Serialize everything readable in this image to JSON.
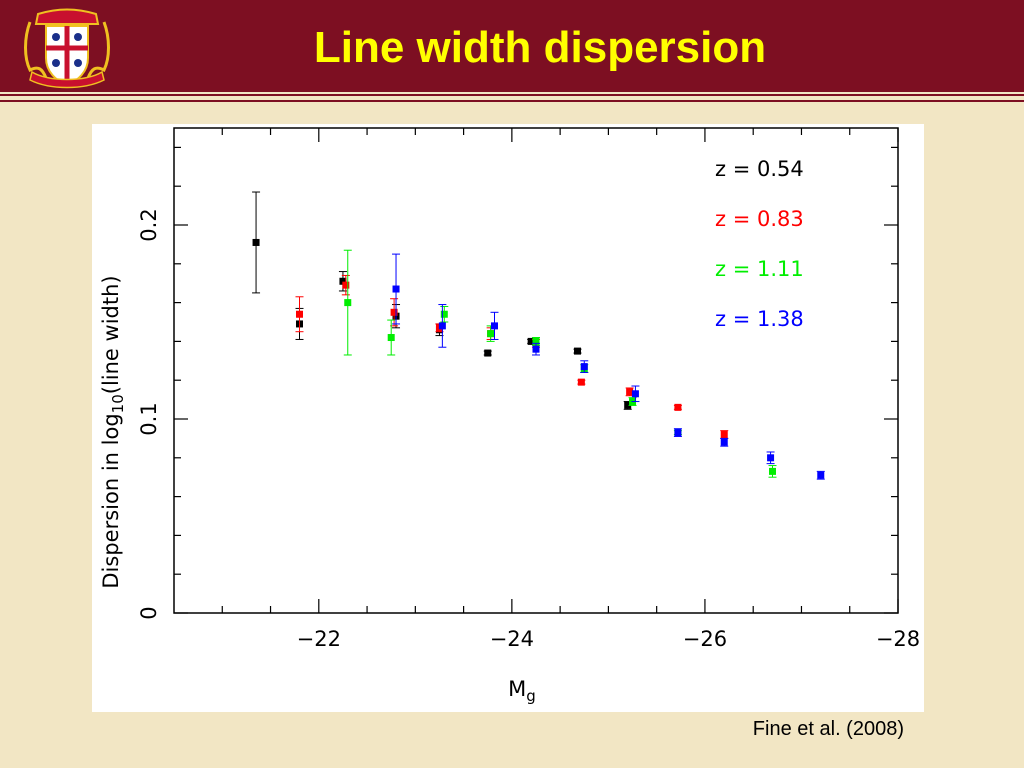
{
  "slide": {
    "title": "Line width dispersion",
    "credit": "Fine et al. (2008)",
    "colors": {
      "header": "#7d0f22",
      "background": "#f2e6c4",
      "title": "#ffff00"
    },
    "logo": "university-crest-icon"
  },
  "chart_data": {
    "type": "scatter",
    "title": "",
    "xlabel": "M_g",
    "xlabel_main": "M",
    "xlabel_sub": "g",
    "ylabel": "Dispersion in log10(line width)",
    "ylabel_parts": {
      "pre": "Dispersion in log",
      "sub": "10",
      "post": "(line width)"
    },
    "xlim": [
      -20.5,
      -28
    ],
    "ylim": [
      0,
      0.25
    ],
    "xticks": [
      -22,
      -24,
      -26,
      -28
    ],
    "xtick_labels": [
      "−22",
      "−24",
      "−26",
      "−28"
    ],
    "yticks": [
      0,
      0.1,
      0.2
    ],
    "ytick_labels": [
      "0",
      "0.1",
      "0.2"
    ],
    "grid": false,
    "legend_position": "top-right",
    "series": [
      {
        "name": "z = 0.54",
        "color": "#000000",
        "points": [
          {
            "x": -21.35,
            "y": 0.191,
            "err": 0.026
          },
          {
            "x": -21.8,
            "y": 0.149,
            "err": 0.008
          },
          {
            "x": -22.25,
            "y": 0.171,
            "err": 0.005
          },
          {
            "x": -22.8,
            "y": 0.153,
            "err": 0.006
          },
          {
            "x": -23.25,
            "y": 0.146,
            "err": 0.003
          },
          {
            "x": -23.75,
            "y": 0.134,
            "err": 0.001
          },
          {
            "x": -24.2,
            "y": 0.14,
            "err": 0.001
          },
          {
            "x": -24.68,
            "y": 0.135,
            "err": 0.001
          },
          {
            "x": -25.2,
            "y": 0.107,
            "err": 0.002
          }
        ]
      },
      {
        "name": "z = 0.83",
        "color": "#ff0000",
        "points": [
          {
            "x": -21.8,
            "y": 0.154,
            "err": 0.009
          },
          {
            "x": -22.28,
            "y": 0.169,
            "err": 0.005
          },
          {
            "x": -22.78,
            "y": 0.155,
            "err": 0.007
          },
          {
            "x": -23.25,
            "y": 0.147,
            "err": 0.002
          },
          {
            "x": -23.78,
            "y": 0.144,
            "err": 0.003
          },
          {
            "x": -24.25,
            "y": 0.139,
            "err": 0.002
          },
          {
            "x": -24.72,
            "y": 0.119,
            "err": 0.001
          },
          {
            "x": -25.22,
            "y": 0.114,
            "err": 0.002
          },
          {
            "x": -25.72,
            "y": 0.106,
            "err": 0.001
          },
          {
            "x": -26.2,
            "y": 0.092,
            "err": 0.002
          }
        ]
      },
      {
        "name": "z = 1.11",
        "color": "#00ee00",
        "points": [
          {
            "x": -22.3,
            "y": 0.16,
            "err": 0.027
          },
          {
            "x": -22.75,
            "y": 0.142,
            "err": 0.009
          },
          {
            "x": -23.3,
            "y": 0.154,
            "err": 0.004
          },
          {
            "x": -23.78,
            "y": 0.144,
            "err": 0.004
          },
          {
            "x": -24.25,
            "y": 0.14,
            "err": 0.002
          },
          {
            "x": -24.75,
            "y": 0.126,
            "err": 0.002
          },
          {
            "x": -25.25,
            "y": 0.109,
            "err": 0.002
          },
          {
            "x": -25.72,
            "y": 0.093,
            "err": 0.001
          },
          {
            "x": -26.7,
            "y": 0.073,
            "err": 0.003
          }
        ]
      },
      {
        "name": "z = 1.38",
        "color": "#0000ff",
        "points": [
          {
            "x": -22.8,
            "y": 0.167,
            "err": 0.018
          },
          {
            "x": -23.28,
            "y": 0.148,
            "err": 0.011
          },
          {
            "x": -23.82,
            "y": 0.148,
            "err": 0.007
          },
          {
            "x": -24.25,
            "y": 0.136,
            "err": 0.003
          },
          {
            "x": -24.75,
            "y": 0.127,
            "err": 0.003
          },
          {
            "x": -25.28,
            "y": 0.113,
            "err": 0.004
          },
          {
            "x": -25.72,
            "y": 0.093,
            "err": 0.002
          },
          {
            "x": -26.2,
            "y": 0.088,
            "err": 0.002
          },
          {
            "x": -26.68,
            "y": 0.08,
            "err": 0.003
          },
          {
            "x": -27.2,
            "y": 0.071,
            "err": 0.002
          }
        ]
      }
    ]
  }
}
